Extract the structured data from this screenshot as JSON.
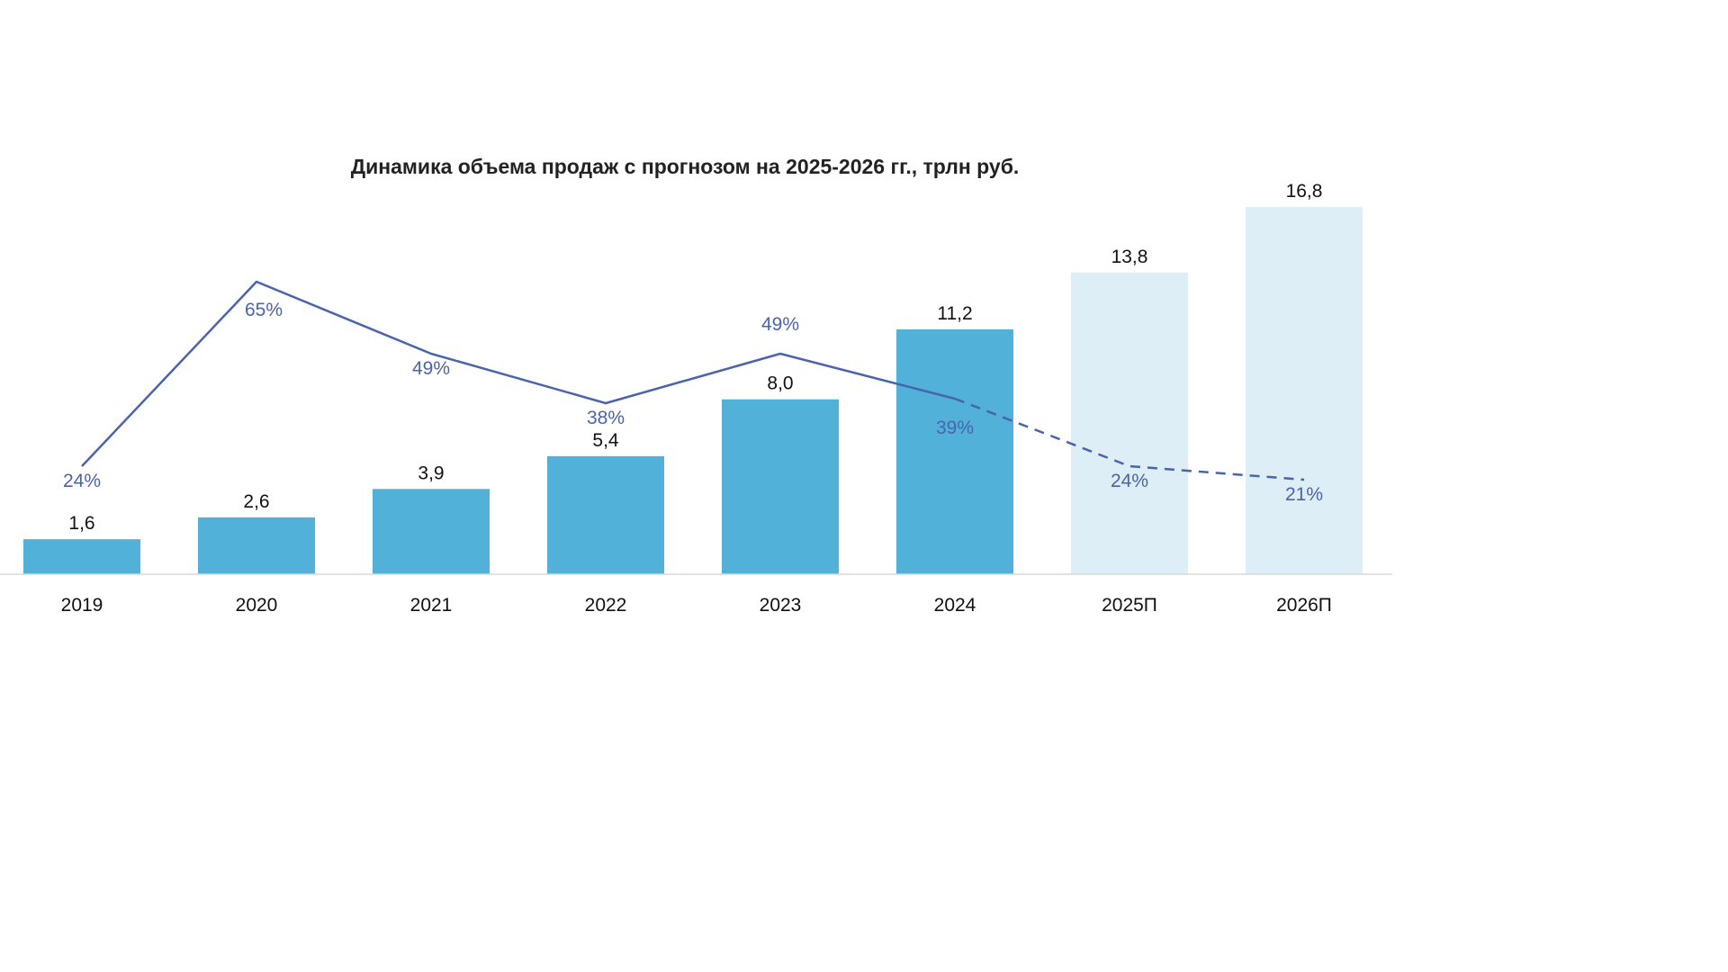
{
  "chart_data": {
    "type": "bar",
    "title": "Динамика объема продаж с прогнозом на 2025-2026 гг., трлн руб.",
    "xlabel": "",
    "ylabel": "",
    "categories": [
      "2019",
      "2020",
      "2021",
      "2022",
      "2023",
      "2024",
      "2025П",
      "2026П"
    ],
    "series": [
      {
        "type": "bar",
        "values": [
          1.6,
          2.6,
          3.9,
          5.4,
          8.0,
          11.2,
          13.8,
          16.8
        ],
        "value_labels": [
          "1,6",
          "2,6",
          "3,9",
          "5,4",
          "8,0",
          "11,2",
          "13,8",
          "16,8"
        ],
        "forecast_from_index": 6
      },
      {
        "type": "line",
        "values": [
          24,
          65,
          49,
          38,
          49,
          39,
          24,
          21
        ],
        "value_labels": [
          "24%",
          "65%",
          "49%",
          "38%",
          "49%",
          "39%",
          "24%",
          "21%"
        ],
        "forecast_from_index": 5
      }
    ],
    "ylim": [
      0,
      16.8
    ],
    "grid": false,
    "legend": "none"
  },
  "colors": {
    "bar_actual": "#52b1d9",
    "bar_forecast": "#ddeef7",
    "line": "#4a63ad",
    "axis": "#d9d9d9",
    "title": "#222222",
    "text": "#111111"
  }
}
